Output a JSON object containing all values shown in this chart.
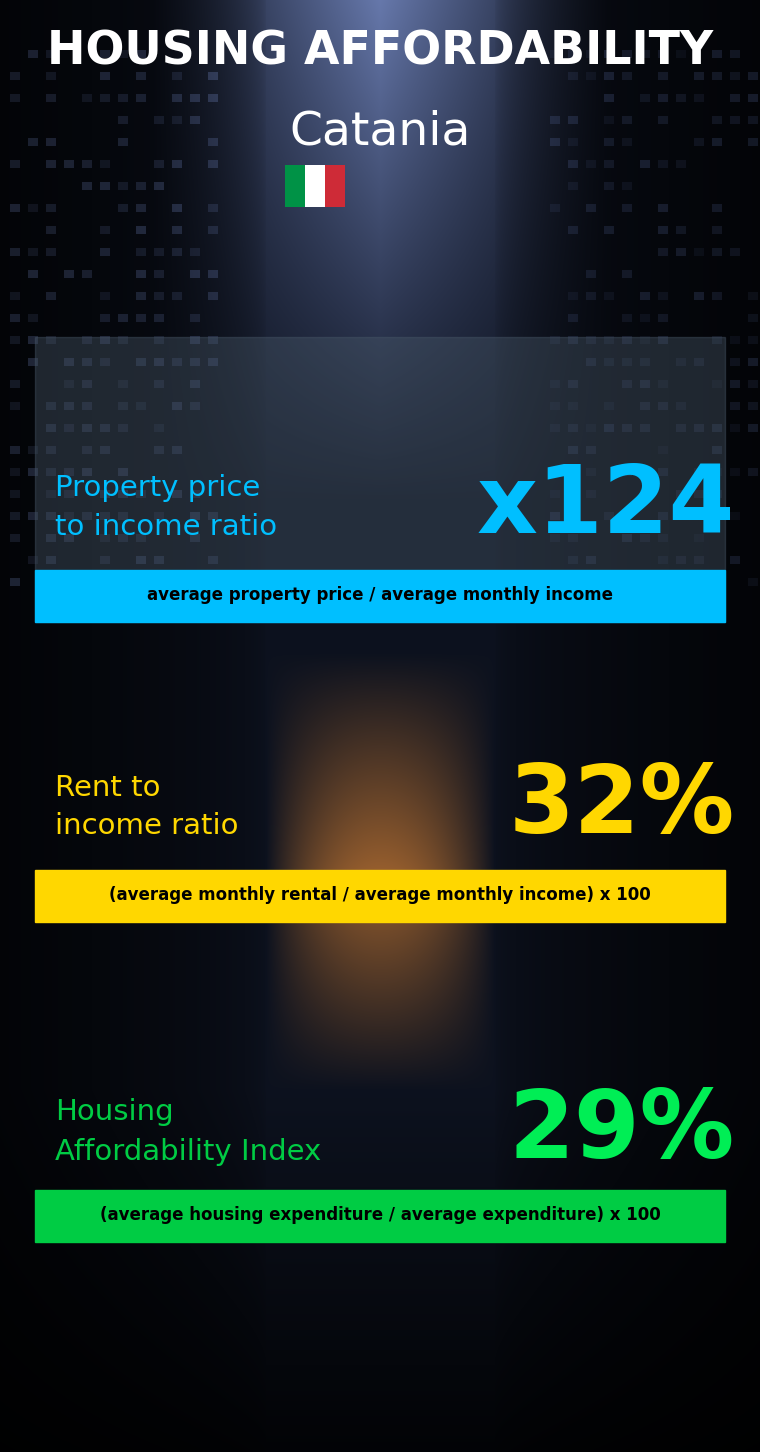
{
  "title_line1": "HOUSING AFFORDABILITY",
  "title_line2": "Catania",
  "bg_color": "#080d14",
  "section1_label": "Property price\nto income ratio",
  "section1_value": "x124",
  "section1_label_color": "#00bfff",
  "section1_value_color": "#00bfff",
  "section1_formula": "average property price / average monthly income",
  "section1_formula_bg": "#00bfff",
  "section2_label": "Rent to\nincome ratio",
  "section2_value": "32%",
  "section2_label_color": "#ffd700",
  "section2_value_color": "#ffd700",
  "section2_formula": "(average monthly rental / average monthly income) x 100",
  "section2_formula_bg": "#ffd700",
  "section3_label": "Housing\nAffordability Index",
  "section3_value": "29%",
  "section3_label_color": "#00cc44",
  "section3_value_color": "#00ee55",
  "section3_formula": "(average housing expenditure / average expenditure) x 100",
  "section3_formula_bg": "#00cc44",
  "italy_flag_colors": [
    "#009246",
    "#ffffff",
    "#ce2b37"
  ],
  "white": "#ffffff",
  "black": "#000000"
}
